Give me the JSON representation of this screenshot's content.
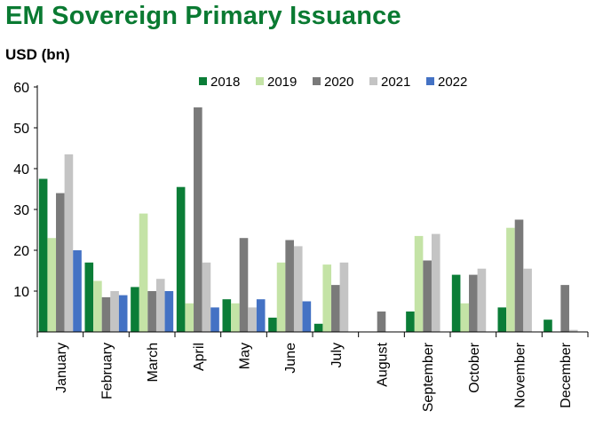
{
  "chart_data": {
    "type": "bar",
    "title": "EM Sovereign Primary Issuance",
    "ylabel": "USD (bn)",
    "xlabel": "",
    "ylim": [
      0,
      60
    ],
    "yticks": [
      10,
      20,
      30,
      40,
      50,
      60
    ],
    "categories": [
      "January",
      "February",
      "March",
      "April",
      "May",
      "June",
      "July",
      "August",
      "September",
      "October",
      "November",
      "December"
    ],
    "series": [
      {
        "name": "2018",
        "color": "#0b7d37",
        "values": [
          37.5,
          17,
          11,
          35.5,
          8,
          3.5,
          2,
          0,
          5,
          14,
          6,
          3
        ]
      },
      {
        "name": "2019",
        "color": "#c4e3a6",
        "values": [
          23,
          12.5,
          29,
          7,
          7,
          17,
          16.5,
          0,
          23.5,
          7,
          25.5,
          0
        ]
      },
      {
        "name": "2020",
        "color": "#7a7a7a",
        "values": [
          34,
          8.5,
          10,
          55,
          23,
          22.5,
          11.5,
          5,
          17.5,
          14,
          27.5,
          11.5
        ]
      },
      {
        "name": "2021",
        "color": "#c4c4c4",
        "values": [
          43.5,
          10,
          13,
          17,
          6,
          21,
          17,
          0,
          24,
          15.5,
          15.5,
          0.5
        ]
      },
      {
        "name": "2022",
        "color": "#4472c4",
        "values": [
          20,
          9,
          10,
          6,
          8,
          7.5,
          0,
          0,
          0,
          0,
          0,
          0
        ]
      }
    ],
    "legend_position": "top"
  }
}
